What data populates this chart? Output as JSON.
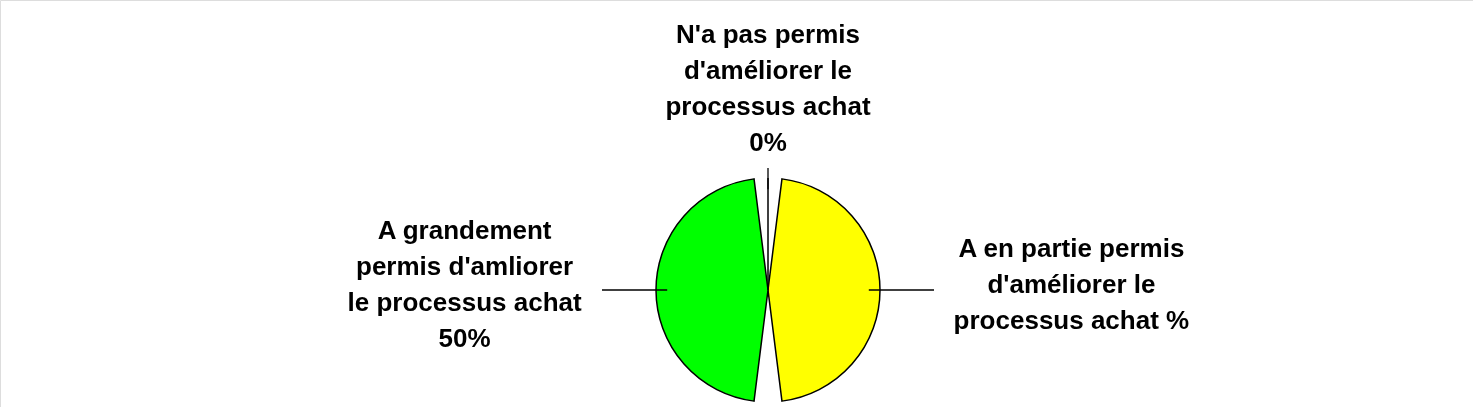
{
  "chart_data": {
    "type": "pie",
    "categories": [
      "A en partie permis d'améliorer le processus achat",
      "A grandement permis d'amliorer le processus achat",
      "N'a pas permis d'améliorer le processus achat"
    ],
    "values": [
      50,
      50,
      0
    ],
    "colors": [
      "#ffff00",
      "#00ff00",
      null
    ],
    "value_labels": [
      "%",
      "50%",
      "0%"
    ]
  }
}
